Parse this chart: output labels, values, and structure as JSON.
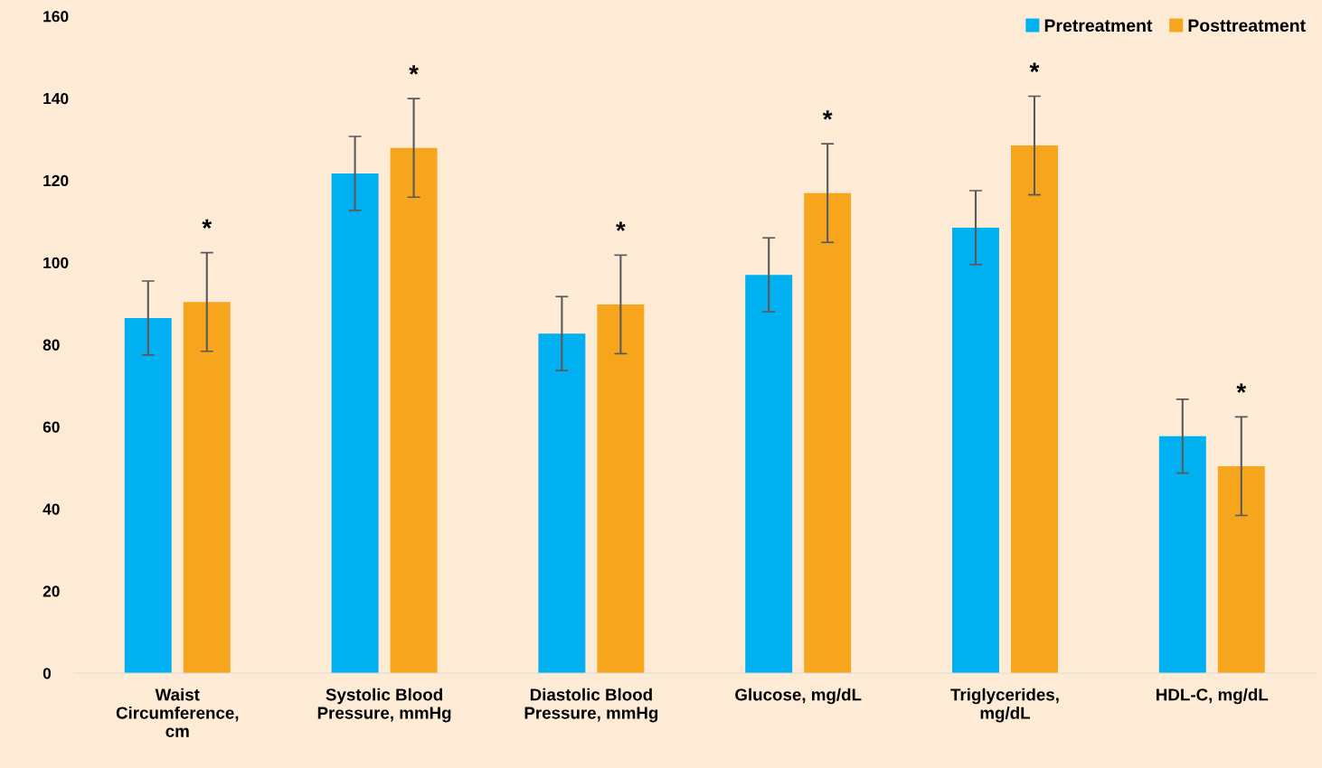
{
  "chart_data": {
    "type": "bar",
    "categories": [
      "Waist\nCircumference,\ncm",
      "Systolic Blood\nPressure, mmHg",
      "Diastolic Blood\nPressure, mmHg",
      "Glucose, mg/dL",
      "Triglycerides,\nmg/dL",
      "HDL-C, mg/dL"
    ],
    "series": [
      {
        "name": "Pretreatment",
        "color": "#00b0f0",
        "values": [
          86.5,
          121.7,
          82.7,
          97,
          108.5,
          57.7
        ],
        "errors": [
          9,
          9,
          9,
          9,
          9,
          9
        ]
      },
      {
        "name": "Posttreatment",
        "color": "#f8a51e",
        "values": [
          90.4,
          127.9,
          89.8,
          116.9,
          128.5,
          50.4
        ],
        "errors": [
          12,
          12,
          12,
          12,
          12,
          12
        ]
      }
    ],
    "ylim": [
      0,
      160
    ],
    "yticks": [
      0,
      20,
      40,
      60,
      80,
      100,
      120,
      140,
      160
    ],
    "grid": false,
    "legend": "top right",
    "annotations": [
      "*",
      "*",
      "*",
      "*",
      "*",
      "*"
    ]
  }
}
